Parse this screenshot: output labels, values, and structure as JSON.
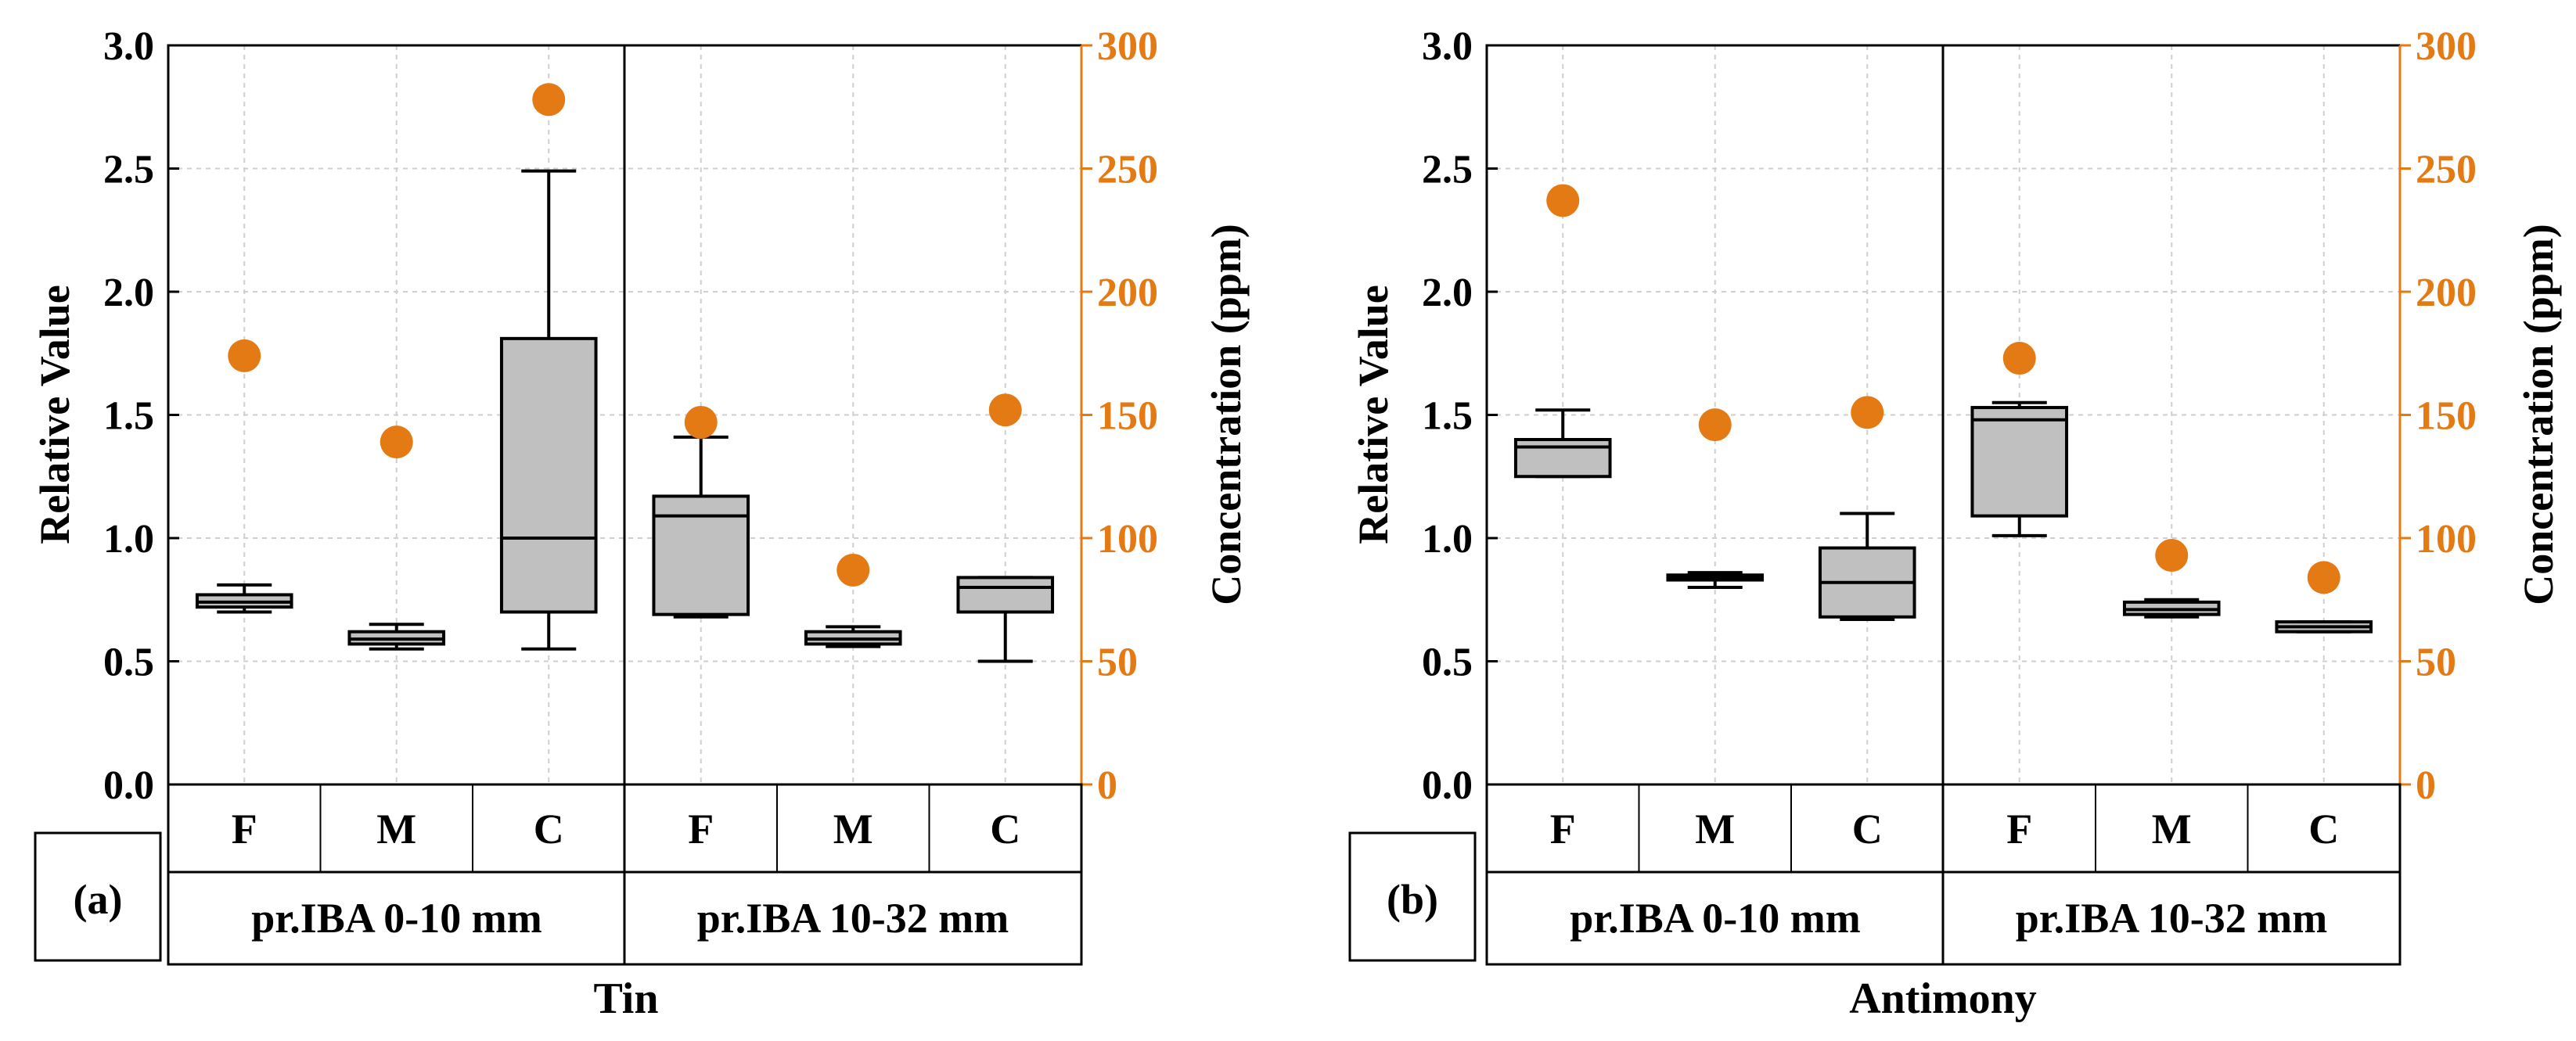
{
  "chart_data": [
    {
      "type": "box",
      "panel": "(a)",
      "xlabel": "Tin",
      "ylabel_left": "Relative Value",
      "ylabel_right": "Concentration (ppm)",
      "ylim_left": [
        0,
        3.0
      ],
      "ylim_right": [
        0,
        300
      ],
      "yticks_left": [
        "0.0",
        "0.5",
        "1.0",
        "1.5",
        "2.0",
        "2.5",
        "3.0"
      ],
      "yticks_right": [
        "0",
        "50",
        "100",
        "150",
        "200",
        "250",
        "300"
      ],
      "groups": [
        "pr.IBA 0-10 mm",
        "pr.IBA 10-32 mm"
      ],
      "categories": [
        "F",
        "M",
        "C",
        "F",
        "M",
        "C"
      ],
      "boxes": [
        {
          "min": 0.7,
          "q1": 0.72,
          "median": 0.74,
          "q3": 0.77,
          "max": 0.81
        },
        {
          "min": 0.55,
          "q1": 0.57,
          "median": 0.59,
          "q3": 0.62,
          "max": 0.65
        },
        {
          "min": 0.55,
          "q1": 0.7,
          "median": 1.0,
          "q3": 1.81,
          "max": 2.49
        },
        {
          "min": 0.68,
          "q1": 0.69,
          "median": 1.09,
          "q3": 1.17,
          "max": 1.41
        },
        {
          "min": 0.56,
          "q1": 0.57,
          "median": 0.59,
          "q3": 0.62,
          "max": 0.64
        },
        {
          "min": 0.5,
          "q1": 0.7,
          "median": 0.8,
          "q3": 0.84,
          "max": 0.84
        }
      ],
      "concentration_ppm": [
        174,
        139,
        278,
        147,
        87,
        152
      ],
      "colors": {
        "box_fill": "#c0c0c0",
        "concentration": "#e47a14",
        "right_axis": "#e47a14"
      }
    },
    {
      "type": "box",
      "panel": "(b)",
      "xlabel": "Antimony",
      "ylabel_left": "Relative Value",
      "ylabel_right": "Concentration (ppm)",
      "ylim_left": [
        0,
        3.0
      ],
      "ylim_right": [
        0,
        300
      ],
      "yticks_left": [
        "0.0",
        "0.5",
        "1.0",
        "1.5",
        "2.0",
        "2.5",
        "3.0"
      ],
      "yticks_right": [
        "0",
        "50",
        "100",
        "150",
        "200",
        "250",
        "300"
      ],
      "groups": [
        "pr.IBA 0-10 mm",
        "pr.IBA 10-32 mm"
      ],
      "categories": [
        "F",
        "M",
        "C",
        "F",
        "M",
        "C"
      ],
      "boxes": [
        {
          "min": 1.25,
          "q1": 1.25,
          "median": 1.37,
          "q3": 1.4,
          "max": 1.52
        },
        {
          "min": 0.8,
          "q1": 0.83,
          "median": 0.84,
          "q3": 0.85,
          "max": 0.86
        },
        {
          "min": 0.67,
          "q1": 0.68,
          "median": 0.82,
          "q3": 0.96,
          "max": 1.1
        },
        {
          "min": 1.01,
          "q1": 1.09,
          "median": 1.48,
          "q3": 1.53,
          "max": 1.55
        },
        {
          "min": 0.68,
          "q1": 0.69,
          "median": 0.71,
          "q3": 0.74,
          "max": 0.75
        },
        {
          "min": 0.62,
          "q1": 0.62,
          "median": 0.64,
          "q3": 0.66,
          "max": 0.66
        }
      ],
      "concentration_ppm": [
        237,
        146,
        151,
        173,
        93,
        84
      ],
      "colors": {
        "box_fill": "#c0c0c0",
        "concentration": "#e47a14",
        "right_axis": "#e47a14"
      }
    }
  ]
}
